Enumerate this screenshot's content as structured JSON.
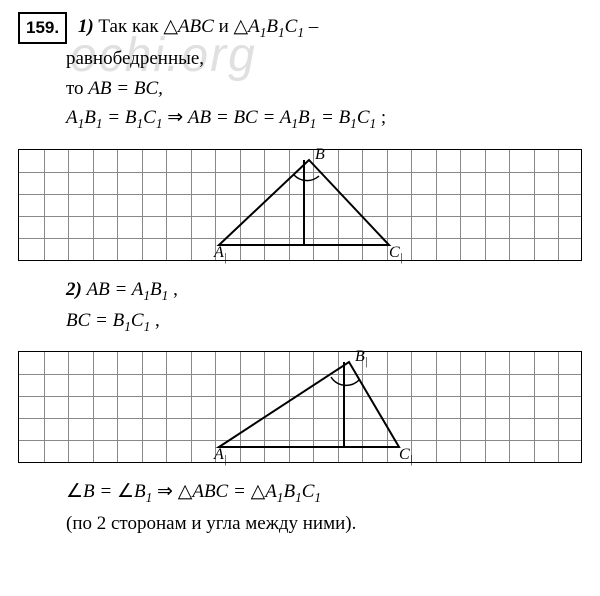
{
  "watermark": "ochi.org",
  "problem_number": "159.",
  "part1": {
    "label": "1)",
    "line1_a": "Так как ",
    "line1_b": " и ",
    "line1_c": " –",
    "line2": "равнобедренные,",
    "line3_a": "то ",
    "eq1_lhs": "AB",
    "eq1_rhs": "BC",
    "line4_lhs": "A",
    "line4_eq": " = ",
    "line4_rhs": "B",
    "implies": " ⇒ ",
    "line4_chain1": "AB",
    "line4_chain2": "BC",
    "line4_chain3": "A",
    "line4_chain4": "B",
    "semicolon": ";"
  },
  "triangle_symbols": {
    "tri": "△",
    "abc": "ABC",
    "a1b1c1_a": "A",
    "a1b1c1_b": "B",
    "a1b1c1_c": "C",
    "sub1": "1"
  },
  "diagram1": {
    "A": "A",
    "B": "B",
    "C": "C"
  },
  "part2": {
    "label": "2)",
    "line1_lhs": "AB",
    "line1_eq": " = ",
    "line1_rhs_a": "A",
    "comma": ",",
    "line2_lhs": "BC",
    "line2_rhs_b": "B"
  },
  "diagram2": {
    "A": "A",
    "B": "B",
    "C": "C"
  },
  "conclusion": {
    "angle": "∠",
    "B": "B",
    "eq": " = ",
    "B1": "B",
    "implies": " ⇒ ",
    "tri": "△",
    "ABC": "ABC",
    "A1B1C1_a": "A",
    "A1B1C1_b": "B",
    "A1B1C1_c": "C",
    "paren": "(по 2 сторонам и угла между ними)."
  },
  "grid": {
    "cell": 24.5,
    "rows1": 5,
    "cols": 23,
    "rows2": 5
  },
  "colors": {
    "grid": "#888888",
    "ink": "#000000"
  }
}
